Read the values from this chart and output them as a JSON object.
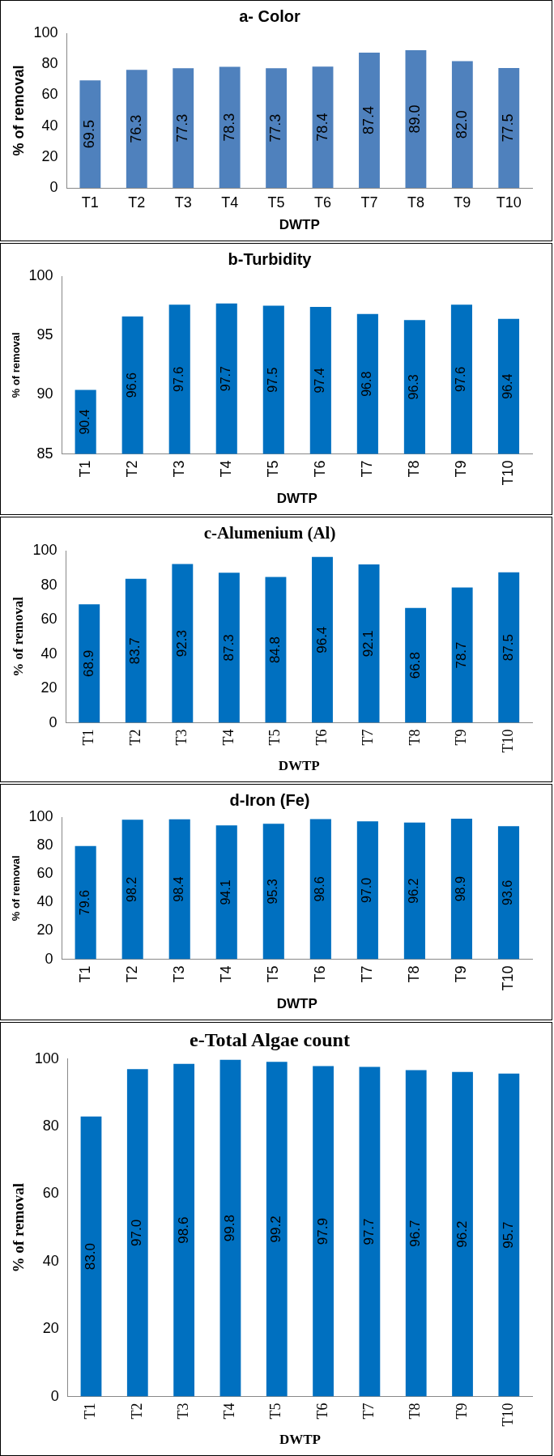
{
  "chart_data": [
    {
      "type": "bar",
      "title": "a- Color",
      "xlabel": "DWTP",
      "ylabel": "% of removal",
      "categories": [
        "T1",
        "T2",
        "T3",
        "T4",
        "T5",
        "T6",
        "T7",
        "T8",
        "T9",
        "T10"
      ],
      "values": [
        69.5,
        76.3,
        77.3,
        78.3,
        77.3,
        78.4,
        87.4,
        89.0,
        82.0,
        77.5
      ],
      "value_labels": [
        "69.5",
        "76.3",
        "77.3",
        "78.3",
        "77.3",
        "78.4",
        "87.4",
        "89.0",
        "82.0",
        "77.5"
      ],
      "color": "#4f81bd",
      "ylim": [
        0,
        100
      ],
      "yticks": [
        0,
        20,
        40,
        60,
        80,
        100
      ]
    },
    {
      "type": "bar",
      "title": "b-Turbidity",
      "xlabel": "DWTP",
      "ylabel": "% of removal",
      "categories": [
        "T1",
        "T2",
        "T3",
        "T4",
        "T5",
        "T6",
        "T7",
        "T8",
        "T9",
        "T10"
      ],
      "values": [
        90.4,
        96.6,
        97.6,
        97.7,
        97.5,
        97.4,
        96.8,
        96.3,
        97.6,
        96.4
      ],
      "value_labels": [
        "90.4",
        "96.6",
        "97.6",
        "97.7",
        "97.5",
        "97.4",
        "96.8",
        "96.3",
        "97.6",
        "96.4"
      ],
      "color": "#0070c0",
      "ylim": [
        85,
        100
      ],
      "yticks": [
        85,
        90,
        95,
        100
      ]
    },
    {
      "type": "bar",
      "title": "c-Alumenium (Al)",
      "xlabel": "DWTP",
      "ylabel": "% of removal",
      "categories": [
        "T1",
        "T2",
        "T3",
        "T4",
        "T5",
        "T6",
        "T7",
        "T8",
        "T9",
        "T10"
      ],
      "values": [
        68.9,
        83.7,
        92.3,
        87.3,
        84.8,
        96.4,
        92.1,
        66.8,
        78.7,
        87.5
      ],
      "value_labels": [
        "68.9",
        "83.7",
        "92.3",
        "87.3",
        "84.8",
        "96.4",
        "92.1",
        "66.8",
        "78.7",
        "87.5"
      ],
      "color": "#0070c0",
      "ylim": [
        0,
        100
      ],
      "yticks": [
        0,
        20,
        40,
        60,
        80,
        100
      ]
    },
    {
      "type": "bar",
      "title": "d-Iron (Fe)",
      "xlabel": "DWTP",
      "ylabel": "% of removal",
      "categories": [
        "T1",
        "T2",
        "T3",
        "T4",
        "T5",
        "T6",
        "T7",
        "T8",
        "T9",
        "T10"
      ],
      "values": [
        79.6,
        98.2,
        98.4,
        94.1,
        95.3,
        98.6,
        97.0,
        96.2,
        98.9,
        93.6
      ],
      "value_labels": [
        "79.6",
        "98.2",
        "98.4",
        "94.1",
        "95.3",
        "98.6",
        "97.0",
        "96.2",
        "98.9",
        "93.6"
      ],
      "color": "#0070c0",
      "ylim": [
        0,
        100
      ],
      "yticks": [
        0,
        20,
        40,
        60,
        80,
        100
      ]
    },
    {
      "type": "bar",
      "title": "e-Total Algae count",
      "xlabel": "DWTP",
      "ylabel": "% of removal",
      "categories": [
        "T1",
        "T2",
        "T3",
        "T4",
        "T5",
        "T6",
        "T7",
        "T8",
        "T9",
        "T10"
      ],
      "values": [
        83.0,
        97.0,
        98.6,
        99.8,
        99.2,
        97.9,
        97.7,
        96.7,
        96.2,
        95.7
      ],
      "value_labels": [
        "83.0",
        "97.0",
        "98.6",
        "99.8",
        "99.2",
        "97.9",
        "97.7",
        "96.7",
        "96.2",
        "95.7"
      ],
      "color": "#0070c0",
      "ylim": [
        0,
        100
      ],
      "yticks": [
        0,
        20,
        40,
        60,
        80,
        100
      ]
    }
  ]
}
